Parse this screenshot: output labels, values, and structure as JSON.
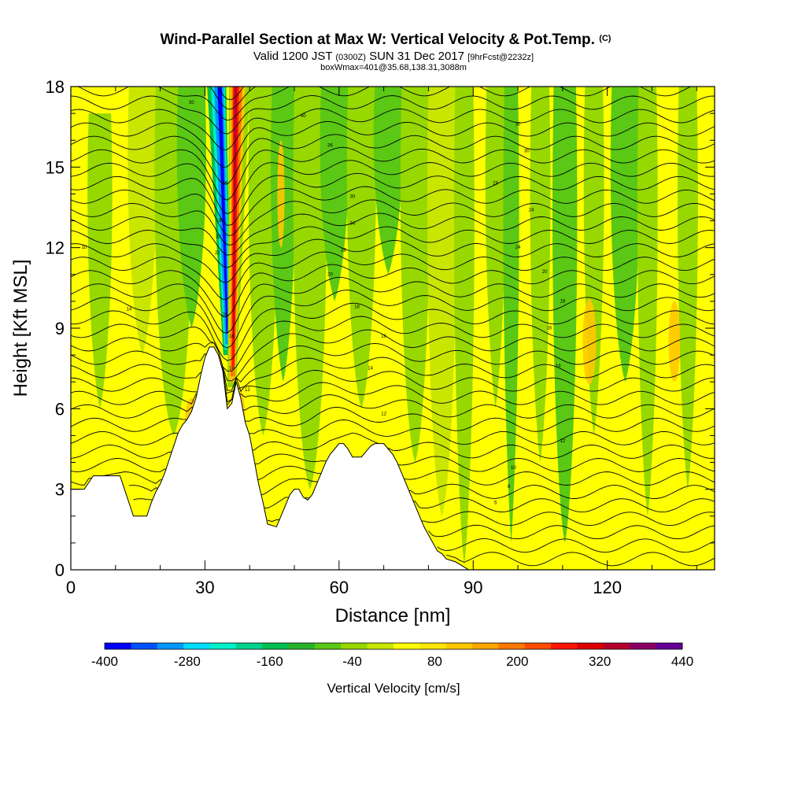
{
  "chart_data": {
    "type": "heatmap",
    "title": "Wind-Parallel Section at Max W: Vertical Velocity & Pot.Temp.",
    "title_mark": "(C)",
    "subtitle_main_a": "Valid 1200 JST",
    "subtitle_small_a": "(0300Z)",
    "subtitle_main_b": "SUN 31 Dec 2017",
    "subtitle_small_b": "[9hrFcst@2232z]",
    "subtitle_line3": "boxWmax=401@35.68,138.31,3088m",
    "xlabel": "Distance [nm]",
    "ylabel": "Height [Kft MSL]",
    "xlim": [
      0,
      144
    ],
    "ylim": [
      0,
      18
    ],
    "x_ticks": [
      0,
      30,
      60,
      90,
      120
    ],
    "y_ticks": [
      0,
      3,
      6,
      9,
      12,
      15,
      18
    ],
    "colorbar": {
      "label": "Vertical Velocity [cm/s]",
      "tick_labels": [
        "-400",
        "-280",
        "-160",
        "-40",
        "80",
        "200",
        "320",
        "440"
      ],
      "colors": [
        "#0000ff",
        "#0050ff",
        "#0096ff",
        "#00dcff",
        "#00f0c8",
        "#00d28c",
        "#00be50",
        "#28b428",
        "#5ac814",
        "#96d800",
        "#c8e600",
        "#ffff00",
        "#ffe600",
        "#ffc800",
        "#ffa500",
        "#ff7800",
        "#ff4b00",
        "#ff1400",
        "#dc0000",
        "#b4002d",
        "#8c0064",
        "#640096"
      ]
    },
    "terrain": [
      [
        0,
        3.0
      ],
      [
        3,
        3.0
      ],
      [
        5,
        3.5
      ],
      [
        11,
        3.5
      ],
      [
        12,
        3.0
      ],
      [
        13,
        2.5
      ],
      [
        14,
        2.0
      ],
      [
        17,
        2.0
      ],
      [
        18,
        2.5
      ],
      [
        19,
        2.9
      ],
      [
        20,
        3.2
      ],
      [
        21,
        3.6
      ],
      [
        22,
        4.1
      ],
      [
        23,
        4.6
      ],
      [
        24,
        5.1
      ],
      [
        25,
        5.4
      ],
      [
        26,
        5.6
      ],
      [
        27,
        5.9
      ],
      [
        28,
        6.4
      ],
      [
        29,
        7.2
      ],
      [
        30,
        7.9
      ],
      [
        31,
        8.3
      ],
      [
        32,
        8.3
      ],
      [
        33,
        8.0
      ],
      [
        34,
        7.4
      ],
      [
        35,
        6.0
      ],
      [
        36,
        6.2
      ],
      [
        37,
        7.0
      ],
      [
        38,
        6.4
      ],
      [
        39,
        5.5
      ],
      [
        40,
        5.0
      ],
      [
        41,
        4.1
      ],
      [
        42,
        3.2
      ],
      [
        43,
        2.5
      ],
      [
        44,
        1.7
      ],
      [
        46,
        1.6
      ],
      [
        47,
        2.0
      ],
      [
        48,
        2.4
      ],
      [
        49,
        2.8
      ],
      [
        50,
        3.0
      ],
      [
        51,
        3.0
      ],
      [
        52,
        2.7
      ],
      [
        53,
        2.6
      ],
      [
        54,
        2.8
      ],
      [
        55,
        3.2
      ],
      [
        56,
        3.6
      ],
      [
        57,
        4.0
      ],
      [
        58,
        4.3
      ],
      [
        59,
        4.5
      ],
      [
        60,
        4.7
      ],
      [
        61,
        4.7
      ],
      [
        62,
        4.5
      ],
      [
        63,
        4.2
      ],
      [
        65,
        4.2
      ],
      [
        66,
        4.4
      ],
      [
        67,
        4.6
      ],
      [
        68,
        4.7
      ],
      [
        70,
        4.7
      ],
      [
        71,
        4.5
      ],
      [
        72,
        4.3
      ],
      [
        73,
        4.0
      ],
      [
        74,
        3.6
      ],
      [
        75,
        3.2
      ],
      [
        76,
        2.8
      ],
      [
        77,
        2.4
      ],
      [
        78,
        2.0
      ],
      [
        79,
        1.6
      ],
      [
        80,
        1.3
      ],
      [
        81,
        1.0
      ],
      [
        82,
        0.7
      ],
      [
        83,
        0.6
      ],
      [
        84,
        0.4
      ],
      [
        86,
        0.3
      ],
      [
        88,
        0.1
      ],
      [
        89,
        0.0
      ],
      [
        144,
        0.0
      ]
    ],
    "theta_contours": [
      {
        "label": "14",
        "x": 13,
        "y": 9.7
      },
      {
        "label": "10",
        "x": 3,
        "y": 12.0
      },
      {
        "label": "30",
        "x": 27,
        "y": 17.4
      },
      {
        "label": "40",
        "x": 52,
        "y": 16.9
      },
      {
        "label": "36",
        "x": 58,
        "y": 15.8
      },
      {
        "label": "30",
        "x": 63,
        "y": 13.9
      },
      {
        "label": "34",
        "x": 63,
        "y": 12.9
      },
      {
        "label": "28",
        "x": 61,
        "y": 11.9
      },
      {
        "label": "20",
        "x": 58,
        "y": 11.0
      },
      {
        "label": "18",
        "x": 64,
        "y": 9.8
      },
      {
        "label": "16",
        "x": 70,
        "y": 8.7
      },
      {
        "label": "14",
        "x": 67,
        "y": 7.5
      },
      {
        "label": "12",
        "x": 70,
        "y": 5.8
      },
      {
        "label": "30",
        "x": 100,
        "y": 16.6
      },
      {
        "label": "30",
        "x": 102,
        "y": 15.6
      },
      {
        "label": "28",
        "x": 95,
        "y": 14.4
      },
      {
        "label": "24",
        "x": 103,
        "y": 13.4
      },
      {
        "label": "24",
        "x": 100,
        "y": 12.0
      },
      {
        "label": "20",
        "x": 106,
        "y": 11.1
      },
      {
        "label": "18",
        "x": 110,
        "y": 10.0
      },
      {
        "label": "16",
        "x": 107,
        "y": 9.0
      },
      {
        "label": "14",
        "x": 109,
        "y": 7.6
      },
      {
        "label": "12",
        "x": 110,
        "y": 4.8
      },
      {
        "label": "10",
        "x": 99,
        "y": 3.8
      },
      {
        "label": "8",
        "x": 98,
        "y": 3.1
      },
      {
        "label": "5",
        "x": 95,
        "y": 2.5
      },
      {
        "label": "26",
        "x": 34.5,
        "y": 14.4
      },
      {
        "label": "30",
        "x": 33.5,
        "y": 13.0
      },
      {
        "label": "32",
        "x": 33,
        "y": 12.4
      },
      {
        "label": "22",
        "x": 32.8,
        "y": 11.8
      },
      {
        "label": "20",
        "x": 34.5,
        "y": 9.5
      },
      {
        "label": "18",
        "x": 36,
        "y": 8.7
      },
      {
        "label": "16",
        "x": 36,
        "y": 7.5
      },
      {
        "label": "12",
        "x": 39.5,
        "y": 6.7
      }
    ]
  }
}
